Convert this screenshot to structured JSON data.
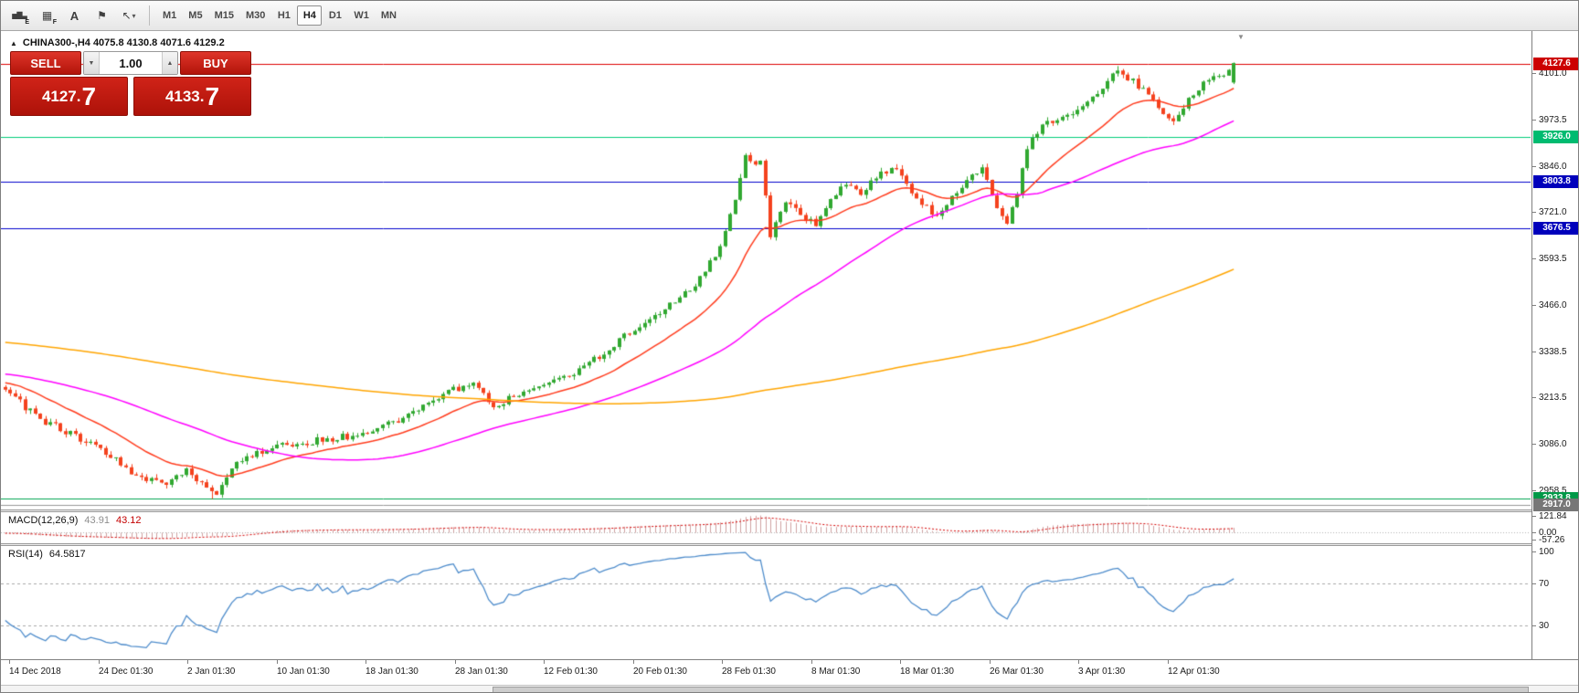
{
  "toolbar": {
    "icons": [
      {
        "name": "bar-chart-icon",
        "glyph": "▅▇▃",
        "corner": "E"
      },
      {
        "name": "grid-icon",
        "glyph": "▦",
        "corner": "F"
      },
      {
        "name": "text-annotation-icon",
        "glyph": "A"
      },
      {
        "name": "label-flag-icon",
        "glyph": "⚑"
      },
      {
        "name": "arrow-objects-icon",
        "glyph": "↖",
        "dropdown": true
      }
    ],
    "timeframes": [
      {
        "label": "M1"
      },
      {
        "label": "M5"
      },
      {
        "label": "M15"
      },
      {
        "label": "M30"
      },
      {
        "label": "H1"
      },
      {
        "label": "H4",
        "active": true
      },
      {
        "label": "D1"
      },
      {
        "label": "W1"
      },
      {
        "label": "MN"
      }
    ]
  },
  "chart": {
    "marker": "▲",
    "title": "CHINA300-,H4 4075.8 4130.8 4071.6 4129.2",
    "shift_marker": "▼"
  },
  "trade_panel": {
    "sell_label": "SELL",
    "buy_label": "BUY",
    "volume": "1.00",
    "volume_down_glyph": "▼",
    "volume_up_glyph": "▲",
    "sell_price_main": "4127.",
    "sell_price_pip": "7",
    "buy_price_main": "4133.",
    "buy_price_pip": "7"
  },
  "chart_data": {
    "type": "candlestick",
    "symbol": "CHINA300-",
    "timeframe": "H4",
    "current_bar": {
      "open": 4075.8,
      "high": 4130.8,
      "low": 4071.6,
      "close": 4129.2
    },
    "visible_bars": 245,
    "prehistory_bars": 210,
    "seed": 20190416,
    "noise": 9,
    "wick": 11,
    "colors": {
      "up": "#31a831",
      "down": "#f4421e"
    },
    "price_anchors": [
      [
        -210,
        3490
      ],
      [
        -150,
        3420
      ],
      [
        -90,
        3360
      ],
      [
        -45,
        3300
      ],
      [
        -15,
        3260
      ],
      [
        0,
        3238
      ],
      [
        6,
        3160
      ],
      [
        14,
        3105
      ],
      [
        20,
        3060
      ],
      [
        26,
        3000
      ],
      [
        32,
        2975
      ],
      [
        36,
        3010
      ],
      [
        40,
        2962
      ],
      [
        42,
        2952
      ],
      [
        46,
        3030
      ],
      [
        52,
        3072
      ],
      [
        60,
        3090
      ],
      [
        70,
        3110
      ],
      [
        80,
        3160
      ],
      [
        88,
        3230
      ],
      [
        93,
        3250
      ],
      [
        97,
        3185
      ],
      [
        102,
        3225
      ],
      [
        108,
        3250
      ],
      [
        113,
        3275
      ],
      [
        119,
        3335
      ],
      [
        125,
        3400
      ],
      [
        131,
        3455
      ],
      [
        137,
        3520
      ],
      [
        142,
        3620
      ],
      [
        145,
        3750
      ],
      [
        147,
        3868
      ],
      [
        150,
        3855
      ],
      [
        152,
        3660
      ],
      [
        155,
        3750
      ],
      [
        158,
        3710
      ],
      [
        161,
        3685
      ],
      [
        164,
        3755
      ],
      [
        167,
        3800
      ],
      [
        170,
        3770
      ],
      [
        173,
        3820
      ],
      [
        177,
        3840
      ],
      [
        181,
        3760
      ],
      [
        185,
        3705
      ],
      [
        188,
        3760
      ],
      [
        191,
        3810
      ],
      [
        194,
        3840
      ],
      [
        197,
        3725
      ],
      [
        199,
        3690
      ],
      [
        201,
        3770
      ],
      [
        203,
        3900
      ],
      [
        206,
        3955
      ],
      [
        209,
        3975
      ],
      [
        212,
        3995
      ],
      [
        215,
        4015
      ],
      [
        218,
        4060
      ],
      [
        221,
        4110
      ],
      [
        224,
        4080
      ],
      [
        227,
        4040
      ],
      [
        230,
        3990
      ],
      [
        232,
        3965
      ],
      [
        235,
        4030
      ],
      [
        238,
        4070
      ],
      [
        241,
        4095
      ],
      [
        244,
        4115
      ]
    ],
    "extremes": [
      {
        "i": 41,
        "low": 2934
      },
      {
        "i": 147,
        "high": 3882
      },
      {
        "i": 221,
        "high": 4121
      }
    ],
    "moving_averages": [
      {
        "name": "fast",
        "type": "ema",
        "period": 20,
        "color": "#ff3c1e"
      },
      {
        "name": "medium",
        "type": "sma",
        "period": 55,
        "color": "#ff00ff"
      },
      {
        "name": "slow",
        "type": "sma",
        "period": 200,
        "color": "#ffa500"
      }
    ],
    "h_lines": [
      {
        "price": 4127.6,
        "color": "#dd0000",
        "badge": "4127.6",
        "badge_bg": "#cc0000"
      },
      {
        "price": 3926.0,
        "color": "#00cc7a",
        "badge": "3926.0",
        "badge_bg": "#00bb70"
      },
      {
        "price": 3803.8,
        "color": "#0000cc",
        "badge": "3803.8",
        "badge_bg": "#0000bb"
      },
      {
        "price": 3676.5,
        "color": "#0000cc",
        "badge": "3676.5",
        "badge_bg": "#0000bb"
      },
      {
        "price": 2933.8,
        "color": "#00a550",
        "badge": "2933.8",
        "badge_bg": "#009948"
      },
      {
        "price": 2917.0,
        "color": "#999999",
        "badge": "2917.0",
        "badge_bg": "#777777"
      }
    ],
    "y_axis": {
      "top_price": 4212,
      "bottom_price": 2910,
      "labels": [
        4101.0,
        3973.5,
        3846.0,
        3721.0,
        3593.5,
        3466.0,
        3338.5,
        3213.5,
        3086.0,
        2958.5
      ]
    },
    "x_axis": {
      "labels": [
        "14 Dec 2018",
        "24 Dec 01:30",
        "2 Jan 01:30",
        "10 Jan 01:30",
        "18 Jan 01:30",
        "28 Jan 01:30",
        "12 Feb 01:30",
        "20 Feb 01:30",
        "28 Feb 01:30",
        "8 Mar 01:30",
        "18 Mar 01:30",
        "26 Mar 01:30",
        "3 Apr 01:30",
        "12 Apr 01:30"
      ]
    },
    "indicators": {
      "macd": {
        "name": "MACD(12,26,9)",
        "value_main": "43.91",
        "value_signal": "43.12",
        "fast": 12,
        "slow": 26,
        "signal": 9,
        "scale": [
          121.84,
          0,
          -57.26
        ],
        "hist_color": "#cfa0a0",
        "signal_color": "#d40000",
        "zero_color": "#b0b0b0"
      },
      "rsi": {
        "name": "RSI(14)",
        "value": "64.5817",
        "period": 14,
        "levels": [
          70,
          30
        ],
        "scale_labels": [
          100,
          70,
          30
        ],
        "color": "#4e8ccb",
        "level_color": "#a8a8a8"
      }
    }
  }
}
